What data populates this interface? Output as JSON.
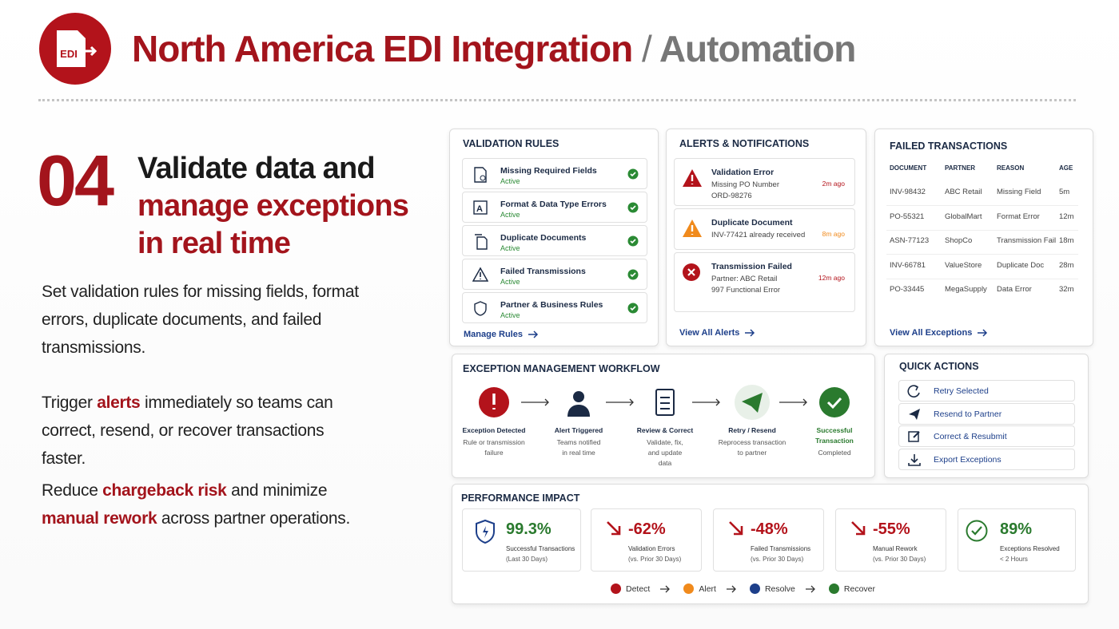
{
  "header": {
    "logo": "EDI",
    "title": "North America EDI Integration",
    "separator": "/",
    "section": "Automation"
  },
  "intro": {
    "number": "04",
    "heading": [
      "Validate data and",
      "manage exceptions",
      "in real time"
    ],
    "paragraphs": [
      [
        {
          "text": "Set validation rules for missing fields, format errors, duplicate documents, and failed transmissions."
        }
      ],
      [
        {
          "text": "Trigger "
        },
        {
          "text": "alerts",
          "emphasis": true
        },
        {
          "text": " immediately so teams can correct, resend, or recover transactions faster."
        }
      ],
      [
        {
          "text": "Reduce "
        },
        {
          "text": "chargeback risk",
          "emphasis": true
        },
        {
          "text": " and minimize "
        },
        {
          "text": "manual rework",
          "emphasis": true
        },
        {
          "text": " across partner operations."
        }
      ]
    ]
  },
  "validation_rules": {
    "title": "VALIDATION RULES",
    "rules": [
      {
        "name": "Missing Required Fields",
        "status": "Active"
      },
      {
        "name": "Format & Data Type Errors",
        "status": "Active"
      },
      {
        "name": "Duplicate Documents",
        "status": "Active"
      },
      {
        "name": "Failed Transmissions",
        "status": "Active"
      },
      {
        "name": "Partner & Business Rules",
        "status": "Active"
      }
    ],
    "link": "Manage Rules"
  },
  "alerts": {
    "title": "ALERTS & NOTIFICATIONS",
    "items": [
      {
        "title": "Validation Error",
        "details": [
          "Missing PO Number",
          "ORD-98276"
        ],
        "time": "2m ago"
      },
      {
        "title": "Duplicate Document",
        "details": [
          "INV-77421 already received"
        ],
        "time": "8m ago"
      },
      {
        "title": "Transmission Failed",
        "details": [
          "Partner: ABC Retail",
          "997 Functional Error"
        ],
        "time": "12m ago"
      }
    ],
    "link": "View All Alerts"
  },
  "failed_transactions": {
    "title": "FAILED TRANSACTIONS",
    "columns": [
      "DOCUMENT",
      "PARTNER",
      "REASON",
      "AGE"
    ],
    "rows": [
      [
        "INV-98432",
        "ABC Retail",
        "Missing Field",
        "5m"
      ],
      [
        "PO-55321",
        "GlobalMart",
        "Format Error",
        "12m"
      ],
      [
        "ASN-77123",
        "ShopCo",
        "Transmission Fail",
        "18m"
      ],
      [
        "INV-66781",
        "ValueStore",
        "Duplicate Doc",
        "28m"
      ],
      [
        "PO-33445",
        "MegaSupply",
        "Data Error",
        "32m"
      ]
    ],
    "link": "View All Exceptions"
  },
  "workflow": {
    "title": "EXCEPTION MANAGEMENT WORKFLOW",
    "steps": [
      {
        "title": "Exception Detected",
        "description": "Rule or transmission failure"
      },
      {
        "title": "Alert Triggered",
        "description": "Teams notified in real time"
      },
      {
        "title": "Review & Correct",
        "description": "Validate, fix, and update data"
      },
      {
        "title": "Retry / Resend",
        "description": "Reprocess transaction to partner"
      },
      {
        "title": "Successful Transaction",
        "description": "Completed"
      }
    ]
  },
  "quick_actions": {
    "title": "QUICK ACTIONS",
    "actions": [
      "Retry Selected",
      "Resend to Partner",
      "Correct & Resubmit",
      "Export Exceptions"
    ]
  },
  "performance": {
    "title": "PERFORMANCE IMPACT",
    "metrics": [
      {
        "value": "99.3%",
        "label": "Successful Transactions",
        "note": "(Last 30 Days)",
        "color": "#2a7a2e"
      },
      {
        "value": "-62%",
        "label": "Validation Errors",
        "note": "(vs. Prior 30 Days)",
        "color": "#b3131b"
      },
      {
        "value": "-48%",
        "label": "Failed Transmissions",
        "note": "(vs. Prior 30 Days)",
        "color": "#b3131b"
      },
      {
        "value": "-55%",
        "label": "Manual Rework",
        "note": "(vs. Prior 30 Days)",
        "color": "#b3131b"
      },
      {
        "value": "89%",
        "label": "Exceptions Resolved",
        "note": "< 2 Hours",
        "color": "#2a7a2e"
      }
    ],
    "legend": [
      {
        "name": "Detect",
        "color": "#b3131b"
      },
      {
        "name": "Alert",
        "color": "#f08a1c"
      },
      {
        "name": "Resolve",
        "color": "#1d3f8a"
      },
      {
        "name": "Recover",
        "color": "#2a7a2e"
      }
    ]
  }
}
